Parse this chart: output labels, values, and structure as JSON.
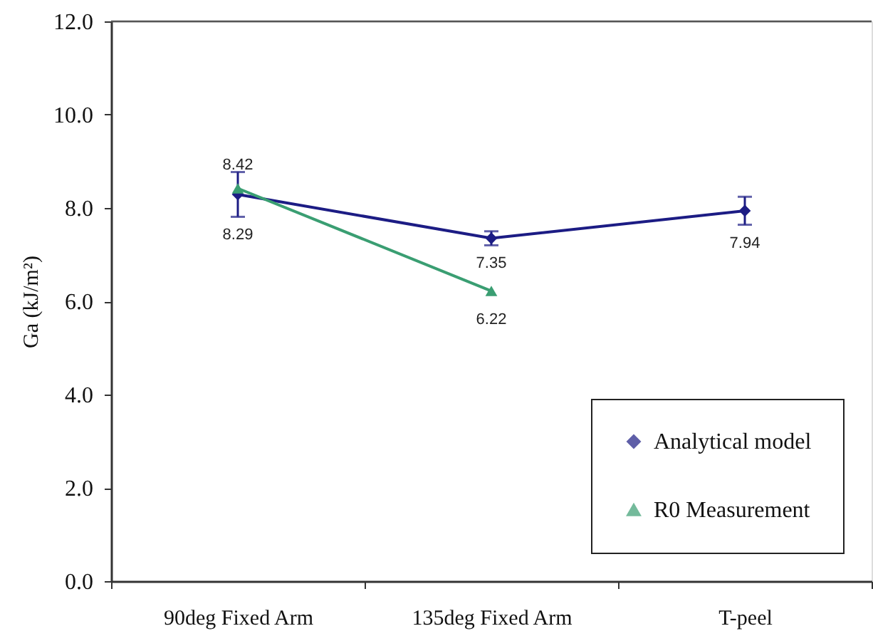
{
  "chart_data": {
    "type": "line",
    "ylabel": "Ga (kJ/m²)",
    "categories": [
      "90deg Fixed Arm",
      "135deg Fixed Arm",
      "T-peel"
    ],
    "series": [
      {
        "name": "Analytical model",
        "color": "#1c1c84",
        "marker": "diamond",
        "values": [
          8.29,
          7.35,
          7.94
        ],
        "errors": [
          0.48,
          0.15,
          0.3
        ]
      },
      {
        "name": "R0 Measurement",
        "color": "#3a9e72",
        "marker": "triangle",
        "values": [
          8.42,
          6.22,
          null
        ]
      }
    ],
    "ylim": [
      0,
      12
    ],
    "yticks": [
      {
        "value": 0,
        "label": "0.0"
      },
      {
        "value": 2,
        "label": "2.0"
      },
      {
        "value": 4,
        "label": "4.0"
      },
      {
        "value": 6,
        "label": "6.0"
      },
      {
        "value": 8,
        "label": "8.0"
      },
      {
        "value": 10,
        "label": "10.0"
      },
      {
        "value": 12,
        "label": "12.0"
      }
    ],
    "data_labels": true,
    "legend": "bottom right",
    "grid": false,
    "line_style": "solid"
  }
}
